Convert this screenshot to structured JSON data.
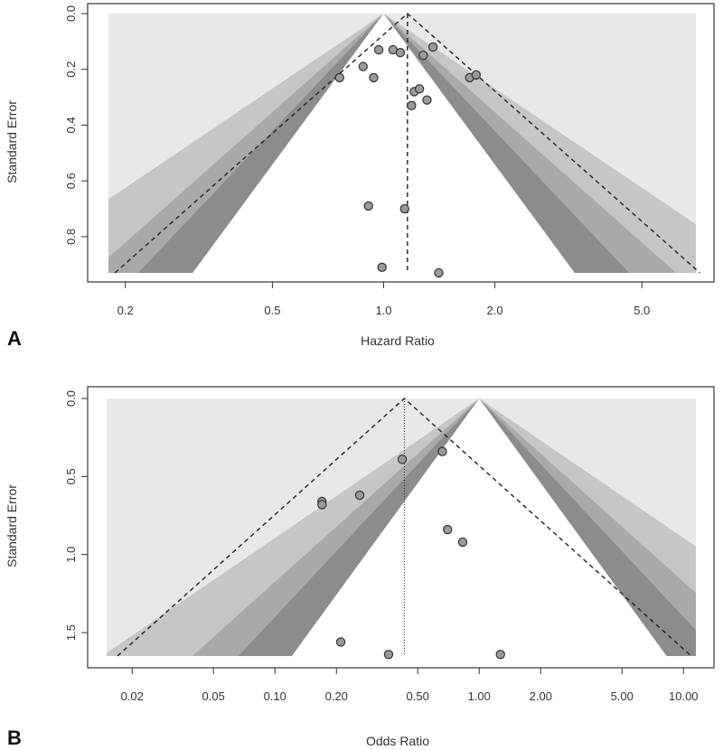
{
  "chart_data": [
    {
      "panel": "A",
      "type": "scatter",
      "subtype": "contour-enhanced funnel plot",
      "xlabel": "Hazard Ratio",
      "ylabel": "Standard Error",
      "x_scale": "log",
      "y_reversed": true,
      "xlim": [
        0.18,
        7.0
      ],
      "ylim": [
        0.0,
        0.93
      ],
      "x_ticks": [
        0.2,
        0.5,
        1.0,
        2.0,
        5.0
      ],
      "x_tick_labels": [
        "0.2",
        "0.5",
        "1.0",
        "2.0",
        "5.0"
      ],
      "y_ticks": [
        0.0,
        0.2,
        0.4,
        0.6,
        0.8
      ],
      "y_tick_labels": [
        "0.0",
        "0.2",
        "0.4",
        "0.6",
        "0.8"
      ],
      "null_effect": 1.0,
      "pooled_estimate": 1.16,
      "pooled_line_style": "dashed",
      "contours": [
        {
          "level": "p < 0.10",
          "z": 1.645,
          "color": "#dcdcdc"
        },
        {
          "level": "p < 0.05",
          "z": 1.96,
          "color": "#bdbdbd"
        },
        {
          "level": "p < 0.01",
          "z": 2.576,
          "color": "#8f8f8f"
        }
      ],
      "background_color": "#e8e8e8",
      "points": [
        {
          "x": 0.97,
          "y": 0.13
        },
        {
          "x": 1.06,
          "y": 0.13
        },
        {
          "x": 1.11,
          "y": 0.14
        },
        {
          "x": 1.36,
          "y": 0.12
        },
        {
          "x": 1.28,
          "y": 0.15
        },
        {
          "x": 0.76,
          "y": 0.23
        },
        {
          "x": 0.88,
          "y": 0.19
        },
        {
          "x": 0.94,
          "y": 0.23
        },
        {
          "x": 1.71,
          "y": 0.23
        },
        {
          "x": 1.78,
          "y": 0.22
        },
        {
          "x": 1.21,
          "y": 0.28
        },
        {
          "x": 1.25,
          "y": 0.27
        },
        {
          "x": 1.19,
          "y": 0.33
        },
        {
          "x": 1.31,
          "y": 0.31
        },
        {
          "x": 0.91,
          "y": 0.69
        },
        {
          "x": 1.14,
          "y": 0.7
        },
        {
          "x": 0.99,
          "y": 0.91
        },
        {
          "x": 1.41,
          "y": 0.93
        }
      ],
      "point_color": "#9a9a9a"
    },
    {
      "panel": "B",
      "type": "scatter",
      "subtype": "contour-enhanced funnel plot",
      "xlabel": "Odds Ratio",
      "ylabel": "Standard Error",
      "x_scale": "log",
      "y_reversed": true,
      "xlim": [
        0.015,
        11.5
      ],
      "ylim": [
        0.0,
        1.65
      ],
      "x_ticks": [
        0.02,
        0.05,
        0.1,
        0.2,
        0.5,
        1.0,
        2.0,
        5.0,
        10.0
      ],
      "x_tick_labels": [
        "0.02",
        "0.05",
        "0.10",
        "0.20",
        "0.50",
        "1.00",
        "2.00",
        "5.00",
        "10.00"
      ],
      "y_ticks": [
        0.0,
        0.5,
        1.0,
        1.5
      ],
      "y_tick_labels": [
        "0.0",
        "0.5",
        "1.0",
        "1.5"
      ],
      "null_effect": 1.0,
      "pooled_estimate": 0.43,
      "pooled_line_style": "dotted",
      "contours": [
        {
          "level": "p < 0.10",
          "z": 1.645,
          "color": "#dcdcdc"
        },
        {
          "level": "p < 0.05",
          "z": 1.96,
          "color": "#bdbdbd"
        },
        {
          "level": "p < 0.01",
          "z": 2.576,
          "color": "#8f8f8f"
        }
      ],
      "background_color": "#e8e8e8",
      "points": [
        {
          "x": 0.17,
          "y": 0.66
        },
        {
          "x": 0.17,
          "y": 0.68
        },
        {
          "x": 0.26,
          "y": 0.62
        },
        {
          "x": 0.42,
          "y": 0.39
        },
        {
          "x": 0.66,
          "y": 0.34
        },
        {
          "x": 0.7,
          "y": 0.84
        },
        {
          "x": 0.83,
          "y": 0.92
        },
        {
          "x": 0.21,
          "y": 1.56
        },
        {
          "x": 0.36,
          "y": 1.64
        },
        {
          "x": 1.27,
          "y": 1.64
        }
      ],
      "point_color": "#9a9a9a"
    }
  ]
}
